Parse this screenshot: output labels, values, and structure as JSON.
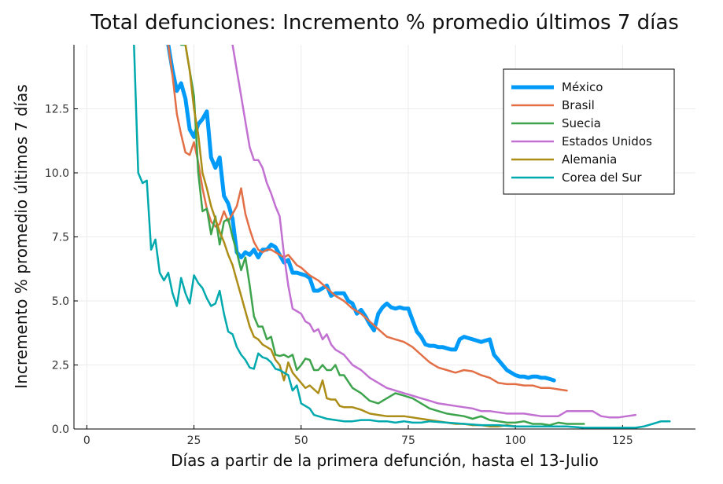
{
  "chart_data": {
    "type": "line",
    "title": "Total defunciones: Incremento % promedio últimos 7 días",
    "xlabel": "Días a partir de la primera defunción, hasta el 13-Julio",
    "ylabel": "Incremento % promedio últimos 7 días",
    "xlim": [
      -3,
      142
    ],
    "ylim": [
      0,
      15
    ],
    "xticks": [
      0,
      25,
      50,
      75,
      100,
      125
    ],
    "xtick_labels": [
      "0",
      "25",
      "50",
      "75",
      "100",
      "125"
    ],
    "yticks": [
      0,
      2.5,
      5.0,
      7.5,
      10.0,
      12.5
    ],
    "ytick_labels": [
      "0.0",
      "2.5",
      "5.0",
      "7.5",
      "10.0",
      "12.5"
    ],
    "grid": true,
    "legend_position": "top-right",
    "series": [
      {
        "name": "México",
        "color": "#009af9",
        "width": 5,
        "x": [
          19,
          20,
          21,
          22,
          23,
          24,
          25,
          26,
          27,
          28,
          29,
          30,
          31,
          32,
          33,
          34,
          35,
          36,
          37,
          38,
          39,
          40,
          41,
          42,
          43,
          44,
          45,
          46,
          47,
          48,
          49,
          50,
          51,
          52,
          53,
          54,
          55,
          56,
          57,
          58,
          59,
          60,
          61,
          62,
          63,
          64,
          65,
          66,
          67,
          68,
          69,
          70,
          71,
          72,
          73,
          74,
          75,
          76,
          77,
          78,
          79,
          80,
          81,
          82,
          83,
          84,
          85,
          86,
          87,
          88,
          89,
          90,
          91,
          92,
          93,
          94,
          95,
          96,
          97,
          98,
          99,
          100,
          101,
          102,
          103,
          104,
          105,
          106,
          107,
          108,
          109
        ],
        "y": [
          15,
          14,
          13.2,
          13.5,
          12.9,
          11.7,
          11.4,
          11.9,
          12.1,
          12.4,
          10.6,
          10.2,
          10.6,
          9.1,
          8.8,
          8.2,
          6.9,
          6.7,
          6.9,
          6.8,
          7,
          6.7,
          7,
          7,
          7.2,
          7.1,
          6.8,
          6.5,
          6.6,
          6.1,
          6.1,
          6.05,
          6,
          5.9,
          5.4,
          5.4,
          5.5,
          5.6,
          5.2,
          5.3,
          5.3,
          5.3,
          5,
          4.9,
          4.5,
          4.65,
          4.4,
          4.1,
          3.85,
          4.5,
          4.75,
          4.9,
          4.75,
          4.7,
          4.75,
          4.7,
          4.7,
          4.25,
          3.8,
          3.6,
          3.3,
          3.25,
          3.25,
          3.2,
          3.2,
          3.15,
          3.1,
          3.1,
          3.5,
          3.6,
          3.55,
          3.5,
          3.45,
          3.4,
          3.45,
          3.5,
          2.9,
          2.7,
          2.5,
          2.3,
          2.2,
          2.1,
          2.05,
          2.05,
          2,
          2.05,
          2.05,
          2,
          2,
          1.95,
          1.9
        ]
      },
      {
        "name": "Brasil",
        "color": "#e26f46",
        "width": 2.5,
        "x": [
          19,
          20,
          21,
          22,
          23,
          24,
          25,
          26,
          27,
          28,
          29,
          30,
          31,
          32,
          33,
          34,
          35,
          36,
          37,
          38,
          39,
          40,
          41,
          42,
          43,
          44,
          45,
          46,
          47,
          48,
          49,
          50,
          52,
          54,
          56,
          58,
          60,
          62,
          64,
          66,
          68,
          70,
          72,
          74,
          76,
          78,
          80,
          82,
          84,
          86,
          88,
          90,
          92,
          94,
          96,
          98,
          100,
          102,
          104,
          106,
          108,
          110,
          112
        ],
        "y": [
          15,
          13.8,
          12.3,
          11.5,
          10.8,
          10.7,
          11.2,
          10.4,
          9.4,
          8.6,
          8.1,
          7.9,
          8,
          8.5,
          8.1,
          8.4,
          8.7,
          9.4,
          8.4,
          7.8,
          7.3,
          7,
          6.9,
          7,
          7,
          6.9,
          6.8,
          6.7,
          6.8,
          6.6,
          6.4,
          6.3,
          6,
          5.8,
          5.5,
          5.2,
          5,
          4.7,
          4.5,
          4.2,
          3.9,
          3.6,
          3.5,
          3.4,
          3.2,
          2.9,
          2.6,
          2.4,
          2.3,
          2.2,
          2.3,
          2.25,
          2.1,
          2.0,
          1.8,
          1.75,
          1.75,
          1.7,
          1.7,
          1.6,
          1.6,
          1.55,
          1.5
        ]
      },
      {
        "name": "Suecia",
        "color": "#3da44d",
        "width": 2.5,
        "x": [
          22,
          23,
          24,
          25,
          26,
          27,
          28,
          29,
          30,
          31,
          32,
          33,
          34,
          35,
          36,
          37,
          38,
          39,
          40,
          41,
          42,
          43,
          44,
          45,
          46,
          47,
          48,
          49,
          50,
          51,
          52,
          53,
          54,
          55,
          56,
          57,
          58,
          59,
          60,
          62,
          64,
          66,
          68,
          70,
          72,
          74,
          76,
          78,
          80,
          82,
          84,
          86,
          88,
          90,
          92,
          94,
          96,
          98,
          100,
          102,
          104,
          106,
          108,
          110,
          112,
          114,
          116
        ],
        "y": [
          15,
          15,
          14,
          13,
          10,
          8.5,
          8.6,
          7.6,
          8.3,
          7.2,
          8.1,
          8.2,
          7.5,
          6.9,
          6.2,
          6.7,
          5.6,
          4.4,
          4,
          4,
          3.5,
          3.6,
          2.9,
          2.85,
          2.9,
          2.8,
          2.9,
          2.3,
          2.5,
          2.75,
          2.7,
          2.3,
          2.3,
          2.5,
          2.3,
          2.3,
          2.5,
          2.1,
          2.1,
          1.6,
          1.4,
          1.1,
          1,
          1.2,
          1.4,
          1.3,
          1.2,
          1,
          0.8,
          0.7,
          0.6,
          0.55,
          0.5,
          0.4,
          0.5,
          0.35,
          0.3,
          0.25,
          0.25,
          0.3,
          0.2,
          0.2,
          0.15,
          0.25,
          0.2,
          0.2,
          0.2
        ]
      },
      {
        "name": "Estados Unidos",
        "color": "#c271d2",
        "width": 2.5,
        "x": [
          34,
          35,
          36,
          37,
          38,
          39,
          40,
          41,
          42,
          43,
          44,
          45,
          46,
          47,
          48,
          49,
          50,
          51,
          52,
          53,
          54,
          55,
          56,
          57,
          58,
          59,
          60,
          62,
          64,
          66,
          68,
          70,
          72,
          74,
          76,
          78,
          80,
          82,
          84,
          86,
          88,
          90,
          92,
          94,
          96,
          98,
          100,
          102,
          104,
          106,
          108,
          110,
          112,
          114,
          116,
          118,
          120,
          122,
          124,
          126,
          128
        ],
        "y": [
          15,
          14,
          13,
          12,
          11,
          10.5,
          10.5,
          10.2,
          9.6,
          9.2,
          8.7,
          8.3,
          6.8,
          5.6,
          4.7,
          4.6,
          4.5,
          4.2,
          4.1,
          3.8,
          3.9,
          3.5,
          3.7,
          3.3,
          3.1,
          3,
          2.9,
          2.5,
          2.3,
          2,
          1.8,
          1.6,
          1.5,
          1.4,
          1.3,
          1.2,
          1.1,
          1.0,
          0.95,
          0.9,
          0.85,
          0.8,
          0.7,
          0.7,
          0.65,
          0.6,
          0.6,
          0.6,
          0.55,
          0.5,
          0.5,
          0.5,
          0.7,
          0.7,
          0.7,
          0.7,
          0.5,
          0.45,
          0.45,
          0.5,
          0.55
        ]
      },
      {
        "name": "Alemania",
        "color": "#ac8d18",
        "width": 2.5,
        "x": [
          23,
          24,
          25,
          26,
          27,
          28,
          29,
          30,
          31,
          32,
          33,
          34,
          35,
          36,
          37,
          38,
          39,
          40,
          41,
          42,
          43,
          44,
          45,
          46,
          47,
          48,
          49,
          50,
          51,
          52,
          53,
          54,
          55,
          56,
          57,
          58,
          59,
          60,
          62,
          64,
          66,
          68,
          70,
          72,
          74,
          76,
          78,
          80,
          82,
          84,
          86,
          88,
          90,
          92,
          94,
          96,
          98,
          100,
          102,
          104,
          106,
          108,
          110
        ],
        "y": [
          15,
          14,
          12.5,
          11.5,
          10,
          9.4,
          8.7,
          8.2,
          7.7,
          7.3,
          6.8,
          6.4,
          5.8,
          5.2,
          4.6,
          4,
          3.6,
          3.5,
          3.3,
          3.2,
          3.1,
          2.7,
          2.5,
          1.9,
          2.6,
          2.2,
          2.0,
          1.8,
          1.6,
          1.7,
          1.55,
          1.4,
          1.9,
          1.2,
          1.15,
          1.15,
          0.9,
          0.85,
          0.85,
          0.75,
          0.6,
          0.55,
          0.5,
          0.5,
          0.5,
          0.45,
          0.4,
          0.35,
          0.3,
          0.25,
          0.2,
          0.2,
          0.15,
          0.15,
          0.1,
          0.1,
          0.15,
          0.1,
          0.1,
          0.1,
          0.1,
          0.1,
          0.1
        ]
      },
      {
        "name": "Corea del Sur",
        "color": "#00a9ad",
        "width": 2.5,
        "x": [
          11,
          12,
          13,
          14,
          15,
          16,
          17,
          18,
          19,
          20,
          21,
          22,
          23,
          24,
          25,
          26,
          27,
          28,
          29,
          30,
          31,
          32,
          33,
          34,
          35,
          36,
          37,
          38,
          39,
          40,
          41,
          42,
          43,
          44,
          45,
          46,
          47,
          48,
          49,
          50,
          51,
          52,
          53,
          54,
          55,
          56,
          58,
          60,
          62,
          64,
          66,
          68,
          70,
          72,
          74,
          76,
          78,
          80,
          84,
          88,
          92,
          96,
          100,
          104,
          108,
          112,
          116,
          120,
          124,
          128,
          130,
          132,
          134,
          136
        ],
        "y": [
          15,
          10,
          9.6,
          9.7,
          7,
          7.4,
          6.1,
          5.8,
          6.1,
          5.3,
          4.8,
          5.9,
          5.3,
          4.9,
          6.0,
          5.7,
          5.5,
          5.1,
          4.8,
          4.9,
          5.4,
          4.5,
          3.8,
          3.7,
          3.2,
          2.9,
          2.7,
          2.4,
          2.35,
          2.95,
          2.8,
          2.75,
          2.6,
          2.35,
          2.3,
          2.2,
          2.1,
          1.5,
          1.7,
          1.0,
          0.9,
          0.8,
          0.55,
          0.5,
          0.45,
          0.4,
          0.35,
          0.3,
          0.3,
          0.35,
          0.35,
          0.3,
          0.3,
          0.25,
          0.3,
          0.25,
          0.25,
          0.3,
          0.25,
          0.2,
          0.15,
          0.15,
          0.1,
          0.1,
          0.1,
          0.1,
          0.05,
          0.05,
          0.05,
          0.05,
          0.1,
          0.2,
          0.3,
          0.3
        ]
      }
    ]
  }
}
